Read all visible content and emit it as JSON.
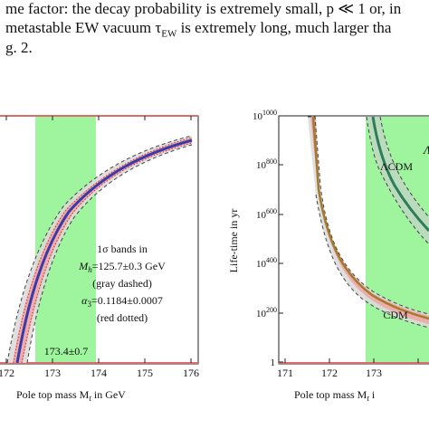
{
  "paragraph": {
    "line1": "me factor: the decay probability is extremely small, p ≪ 1 or, in",
    "line2": "metastable EW vacuum τ",
    "line2_sub": "EW",
    "line2_rest": " is extremely long, much larger tha",
    "line3": "g. 2."
  },
  "left_panel": {
    "xlabel": "Pole top mass M",
    "xlabel_sub": "t",
    "xlabel_unit": " in GeV",
    "x_ticks": [
      "172",
      "173",
      "174",
      "175",
      "176"
    ],
    "green_band_label": "173.4±0.7",
    "legend": {
      "l1a": "1σ bands in",
      "l2a": "M",
      "l2sub": "h",
      "l2b": "=125.7±0.3 GeV",
      "l3": "(gray dashed)",
      "l4a": "α",
      "l4sub": "3",
      "l4b": "=0.1184±0.0007",
      "l5": "(red dotted)"
    }
  },
  "right_panel": {
    "xlabel": "Pole top mass M",
    "xlabel_sub": "t",
    "xlabel_rest": " i",
    "ylabel": "Life-time in yr",
    "x_ticks": [
      "171",
      "172",
      "173"
    ],
    "y_ticks": [
      {
        "base": "10",
        "exp": "1000"
      },
      {
        "base": "10",
        "exp": "800"
      },
      {
        "base": "10",
        "exp": "600"
      },
      {
        "base": "10",
        "exp": "400"
      },
      {
        "base": "10",
        "exp": "200"
      },
      {
        "base": "1",
        "exp": ""
      }
    ],
    "curve_label_upper": "ΛCDM",
    "curve_label_lower": "CDM",
    "edge_label": "Λ"
  },
  "chart_data": [
    {
      "type": "line",
      "panel": "left",
      "xlabel": "Pole top mass Mt in GeV",
      "xlim": [
        171.9,
        176.2
      ],
      "x_ticks": [
        172,
        173,
        174,
        175,
        176
      ],
      "shaded_x_band": [
        172.7,
        174.0
      ],
      "band_label": "173.4±0.7",
      "series": [
        {
          "x": [
            172.3,
            172.6,
            173.0,
            173.4,
            173.8,
            174.2,
            174.6,
            175.0,
            175.4,
            175.8,
            176.0
          ],
          "y": [
            0.0,
            0.18,
            0.36,
            0.5,
            0.6,
            0.68,
            0.74,
            0.79,
            0.83,
            0.87,
            0.88
          ]
        }
      ]
    },
    {
      "type": "line",
      "panel": "right",
      "xlabel": "Pole top mass Mt i",
      "ylabel": "Life-time in yr",
      "xscale": "log10 of years on y",
      "ylim": [
        0,
        1000
      ],
      "y_ticks": [
        0,
        200,
        400,
        600,
        800,
        1000
      ],
      "x_ticks": [
        171,
        172,
        173
      ],
      "shaded_x_band": [
        172.7,
        174.0
      ],
      "series": [
        {
          "name": "ΛCDM",
          "x": [
            172.9,
            173.0,
            173.3,
            173.6,
            174.0
          ],
          "y": [
            1000,
            880,
            700,
            560,
            420
          ]
        },
        {
          "name": "CDM",
          "x": [
            172.2,
            172.4,
            172.7,
            173.0,
            173.5,
            174.0
          ],
          "y": [
            600,
            380,
            220,
            140,
            80,
            60
          ]
        }
      ]
    }
  ]
}
